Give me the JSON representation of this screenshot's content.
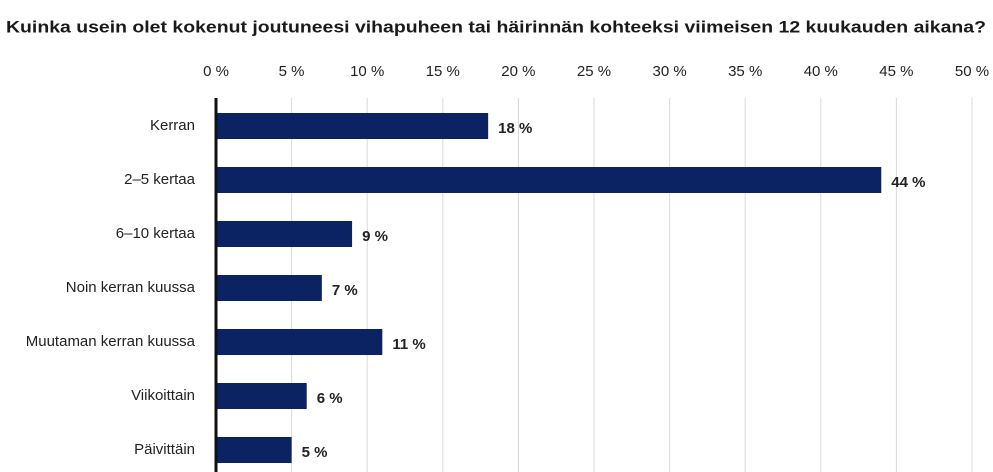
{
  "chart_data": {
    "type": "bar",
    "orientation": "horizontal",
    "title": "Kuinka usein olet kokenut joutuneesi vihapuheen tai häirinnän kohteeksi viimeisen 12 kuukauden aikana?",
    "categories": [
      "Kerran",
      "2–5 kertaa",
      "6–10 kertaa",
      "Noin kerran kuussa",
      "Muutaman kerran kuussa",
      "Viikoittain",
      "Päivittäin"
    ],
    "values": [
      18,
      44,
      9,
      7,
      11,
      6,
      5
    ],
    "value_labels": [
      "18 %",
      "44 %",
      "9 %",
      "7 %",
      "11 %",
      "6 %",
      "5 %"
    ],
    "color": "#0b2263",
    "xlim": [
      0,
      50
    ],
    "xticks": [
      {
        "value": 0,
        "label": "0 %"
      },
      {
        "value": 5,
        "label": "5 %"
      },
      {
        "value": 10,
        "label": "10 %"
      },
      {
        "value": 15,
        "label": "15 %"
      },
      {
        "value": 20,
        "label": "20 %"
      },
      {
        "value": 25,
        "label": "25 %"
      },
      {
        "value": 30,
        "label": "30 %"
      },
      {
        "value": 35,
        "label": "35 %"
      },
      {
        "value": 40,
        "label": "40 %"
      },
      {
        "value": 45,
        "label": "45 %"
      },
      {
        "value": 50,
        "label": "50 %"
      }
    ],
    "grid": true
  }
}
